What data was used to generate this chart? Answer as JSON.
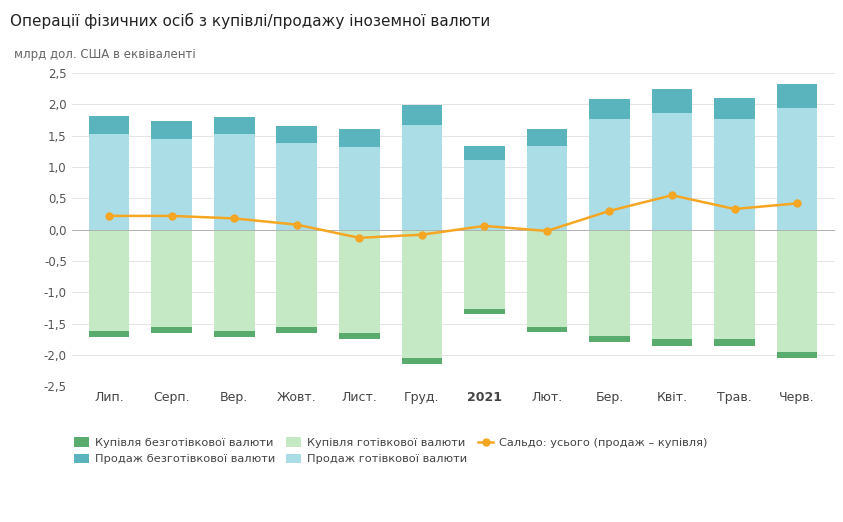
{
  "title": "Операції фізичних осіб з купівлі/продажу іноземної валюти",
  "ylabel": "млрд дол. США в еквіваленті",
  "categories": [
    "Лип.",
    "Серп.",
    "Вер.",
    "Жовт.",
    "Лист.",
    "Груд.",
    "2021",
    "Лют.",
    "Бер.",
    "Квіт.",
    "Трав.",
    "Черв."
  ],
  "ylim": [
    -2.5,
    2.5
  ],
  "yticks": [
    -2.5,
    -2.0,
    -1.5,
    -1.0,
    -0.5,
    0.0,
    0.5,
    1.0,
    1.5,
    2.0,
    2.5
  ],
  "sell_cashless": [
    0.3,
    0.28,
    0.28,
    0.27,
    0.28,
    0.32,
    0.22,
    0.27,
    0.32,
    0.38,
    0.33,
    0.38
  ],
  "buy_cashless": [
    0.1,
    0.1,
    0.1,
    0.1,
    0.1,
    0.1,
    0.08,
    0.09,
    0.1,
    0.1,
    0.1,
    0.1
  ],
  "sell_cash": [
    1.52,
    1.45,
    1.52,
    1.38,
    1.32,
    1.67,
    1.12,
    1.33,
    1.77,
    1.87,
    1.77,
    1.95
  ],
  "buy_cash": [
    1.62,
    1.55,
    1.62,
    1.55,
    1.65,
    2.05,
    1.27,
    1.55,
    1.7,
    1.75,
    1.75,
    1.95
  ],
  "saldo": [
    0.22,
    0.22,
    0.18,
    0.08,
    -0.13,
    -0.08,
    0.06,
    -0.02,
    0.3,
    0.55,
    0.33,
    0.42
  ],
  "color_sell_cash": "#aadde6",
  "color_sell_cashless": "#5ab4be",
  "color_buy_cash": "#c5e8c5",
  "color_buy_cashless": "#5aab6e",
  "color_saldo": "#f5a623",
  "label_buy_cashless": "Купівля безготівкової валюти",
  "label_sell_cashless": "Продаж безготівкової валюти",
  "label_buy_cash": "Купівля готівкової валюти",
  "label_sell_cash": "Продаж готівкової валюти",
  "label_saldo": "Сальдо: усього (продаж – купівля)",
  "bg_color": "#ffffff",
  "grid_color": "#e5e5e5",
  "bar_width": 0.65
}
